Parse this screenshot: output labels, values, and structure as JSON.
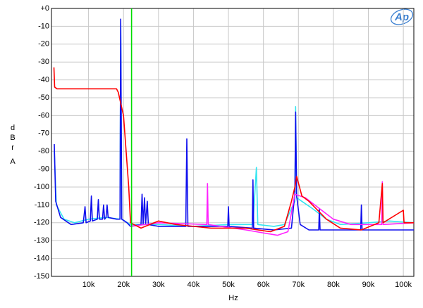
{
  "chart_data": {
    "type": "line",
    "logo": "Ap",
    "xlabel": "Hz",
    "ylabel": "dBr",
    "ylabel_unit": "A",
    "xlim": [
      -600,
      103000
    ],
    "ylim": [
      -150,
      0
    ],
    "xticks": [
      {
        "value": 10000,
        "label": "10k"
      },
      {
        "value": 20000,
        "label": "20k"
      },
      {
        "value": 30000,
        "label": "30k"
      },
      {
        "value": 40000,
        "label": "40k"
      },
      {
        "value": 50000,
        "label": "50k"
      },
      {
        "value": 60000,
        "label": "60k"
      },
      {
        "value": 70000,
        "label": "70k"
      },
      {
        "value": 80000,
        "label": "80k"
      },
      {
        "value": 90000,
        "label": "90k"
      },
      {
        "value": 100000,
        "label": "100k"
      }
    ],
    "yticks": [
      {
        "value": 0,
        "label": "+0"
      },
      -10,
      -20,
      -30,
      -40,
      -50,
      -60,
      -70,
      -80,
      -90,
      -100,
      -110,
      -120,
      -130,
      -140,
      -150
    ],
    "grid": true,
    "marker_x": 22300,
    "marker_color": "#00dd00",
    "series": [
      {
        "color": "#33e5f0",
        "x": [
          200,
          800,
          3000,
          6000,
          10000,
          15000,
          19000,
          19200,
          19500,
          22000,
          30000,
          40000,
          50000,
          57000,
          58000,
          58400,
          63000,
          66000,
          68000,
          69000,
          69200,
          69500,
          71000,
          74000,
          78000,
          82000,
          90000,
          96000,
          103000
        ],
        "values": [
          -80,
          -110,
          -118,
          -120,
          -118,
          -117,
          -118,
          -8,
          -118,
          -121,
          -121,
          -122,
          -121,
          -121,
          -89,
          -121,
          -122,
          -121,
          -112,
          -108,
          -55,
          -106,
          -108,
          -112,
          -118,
          -121,
          -120,
          -119,
          -120
        ]
      },
      {
        "color": "#1010ee",
        "x": [
          200,
          600,
          2000,
          5000,
          8500,
          9000,
          9300,
          10500,
          10800,
          11100,
          12500,
          12800,
          13100,
          14000,
          14300,
          14600,
          15000,
          15300,
          15600,
          18000,
          19000,
          19200,
          19500,
          21000,
          22000,
          25000,
          25300,
          25600,
          26000,
          26300,
          26800,
          27100,
          30000,
          37800,
          38100,
          38400,
          49800,
          50000,
          50200,
          56800,
          57000,
          57200,
          63000,
          68000,
          69000,
          69200,
          69500,
          70500,
          73000,
          75800,
          76000,
          76200,
          80000,
          87800,
          88000,
          88200,
          100000,
          103000
        ],
        "values": [
          -76,
          -108,
          -117,
          -121,
          -120,
          -111,
          -120,
          -119,
          -105,
          -119,
          -118,
          -107,
          -118,
          -118,
          -110,
          -118,
          -117,
          -110,
          -117,
          -118,
          -118,
          -6,
          -118,
          -120,
          -122,
          -121,
          -104,
          -121,
          -106,
          -121,
          -108,
          -121,
          -122,
          -122,
          -73,
          -122,
          -122,
          -111,
          -122,
          -123,
          -96,
          -123,
          -124,
          -123,
          -103,
          -58,
          -105,
          -121,
          -124,
          -124,
          -112,
          -124,
          -124,
          -124,
          -110,
          -124,
          -124,
          -124
        ]
      },
      {
        "color": "#ff22ff",
        "x": [
          22000,
          30000,
          43800,
          44000,
          44200,
          55000,
          64000,
          67000,
          69000,
          72000,
          76000,
          80000,
          85000,
          93800,
          94000,
          94200,
          103000
        ],
        "values": [
          -122,
          -120,
          -121,
          -98,
          -121,
          -124,
          -127,
          -125,
          -104,
          -106,
          -112,
          -118,
          -121,
          -121,
          -97,
          -121,
          -120
        ]
      },
      {
        "color": "#ff0000",
        "x": [
          100,
          300,
          1000,
          5000,
          10000,
          15000,
          18000,
          18500,
          20000,
          21500,
          22000,
          25000,
          30000,
          35000,
          45000,
          55000,
          62000,
          66000,
          68000,
          69000,
          69500,
          71000,
          73000,
          78000,
          82000,
          88000,
          93000,
          94000,
          94200,
          100000,
          100200,
          103000
        ],
        "values": [
          -33,
          -44,
          -45,
          -45,
          -45,
          -45,
          -45,
          -47,
          -60,
          -100,
          -120,
          -123,
          -119,
          -121,
          -123,
          -123,
          -125,
          -122,
          -108,
          -100,
          -94,
          -105,
          -108,
          -118,
          -123,
          -124,
          -120,
          -98,
          -120,
          -113,
          -120,
          -120
        ]
      }
    ]
  }
}
